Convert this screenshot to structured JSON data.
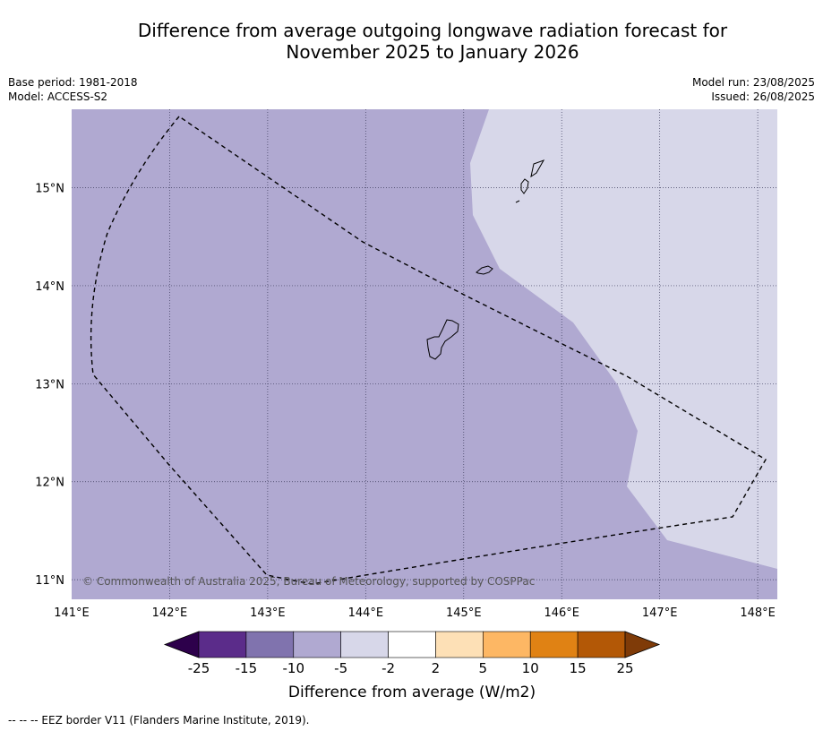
{
  "title": {
    "line1": "Difference from average outgoing longwave radiation forecast for",
    "line2": "November 2025 to January 2026"
  },
  "meta_left": {
    "base_period": "Base period: 1981-2018",
    "model": "Model: ACCESS-S2"
  },
  "meta_right": {
    "model_run": "Model run: 23/08/2025",
    "issued": "Issued: 26/08/2025"
  },
  "map": {
    "lon_range": [
      141.0,
      148.2
    ],
    "lat_range": [
      10.8,
      15.8
    ],
    "lon_ticks": [
      141,
      142,
      143,
      144,
      145,
      146,
      147,
      148
    ],
    "lon_tick_labels": [
      "141°E",
      "142°E",
      "143°E",
      "144°E",
      "145°E",
      "146°E",
      "147°E",
      "148°E"
    ],
    "lat_ticks": [
      15,
      14,
      13,
      12,
      11
    ],
    "lat_tick_labels": [
      "15°N",
      "14°N",
      "13°N",
      "12°N",
      "11°N"
    ],
    "background_category": "-10 to -5",
    "region_category": "-5 to -2",
    "copyright": "© Commonwealth of Australia 2025, Bureau of Meteorology, supported by COSPPac",
    "colors": {
      "background": "#b0a9d1",
      "region": "#d7d7e9",
      "eez": "#000000",
      "grid": "#3a3a5a"
    }
  },
  "colorbar": {
    "boundaries": [
      "-25",
      "-15",
      "-10",
      "-5",
      "-2",
      "2",
      "5",
      "10",
      "15",
      "25"
    ],
    "colors": [
      "#5b2c8a",
      "#8073ae",
      "#b0a9d1",
      "#d7d7e9",
      "#ffffff",
      "#fde0b6",
      "#fdb764",
      "#e08214",
      "#b35806"
    ],
    "under_color": "#2d004b",
    "over_color": "#7f3b08",
    "label": "Difference from average (W/m2)"
  },
  "footer": {
    "eez_note": "--  --  -- EEZ border V11 (Flanders Marine Institute, 2019)."
  }
}
